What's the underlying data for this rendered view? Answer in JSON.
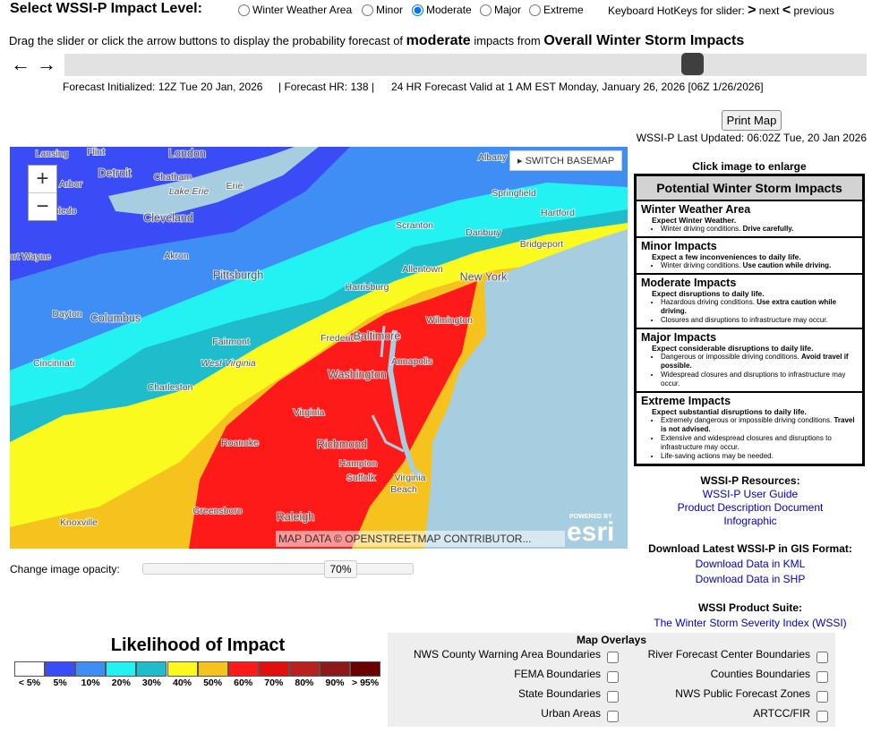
{
  "header": {
    "title": "Select WSSI-P Impact Level:",
    "options": [
      "Winter Weather Area",
      "Minor",
      "Moderate",
      "Major",
      "Extreme"
    ],
    "selected": 2,
    "hotkeys": {
      "label": "Keyboard HotKeys for slider:",
      "next_key": ">",
      "next": "next",
      "prev_key": "<",
      "prev": "previous"
    }
  },
  "instruction": {
    "text1": "Drag the slider or click the arrow buttons to display the probability forecast of",
    "level": "moderate",
    "text2": "impacts from",
    "product": "Overall Winter Storm Impacts"
  },
  "arrows": {
    "back": "←",
    "forward": "→"
  },
  "forecast_info": [
    "Forecast Initialized: 12Z Tue 20 Jan, 2026",
    "| Forecast HR: 138 |",
    "24 HR Forecast Valid at 1 AM EST Monday, January 26, 2026 [06Z 1/26/2026]"
  ],
  "print_button": "Print Map",
  "last_updated": "WSSI-P Last Updated: 06:02Z Tue, 20 Jan 2026",
  "map": {
    "switch_basemap": "SWITCH BASEMAP",
    "zoom_in": "+",
    "zoom_out": "−",
    "attribution": "MAP DATA © OPENSTREETMAP CONTRIBUTOR...",
    "powered_by": "POWERED BY",
    "logo": "esri",
    "labels": [
      "Lansing",
      "Flint",
      "London",
      "Detroit",
      "Chatham",
      "Arbor",
      "Lake Erie",
      "Erie",
      "Toledo",
      "Cleveland",
      "Albany",
      "Springfield",
      "Hartford",
      "Scranton",
      "Danbury",
      "Bridgeport",
      "Akron",
      "Allentown",
      "New York",
      "ort Wayne",
      "Pittsburgh",
      "Harrisburg",
      "Wilmington",
      "Dayton",
      "Columbus",
      "Fairmont",
      "Frederick",
      "Baltimore",
      "Cincinnati",
      "West Virginia",
      "Annapolis",
      "Washington",
      "Charleston",
      "Virginia",
      "Roanoke",
      "Richmond",
      "Hampton",
      "Suffolk",
      "Virginia",
      "Beach",
      "Greensboro",
      "Raleigh",
      "Knoxville"
    ]
  },
  "opacity": {
    "label": "Change image opacity:",
    "value": "70%"
  },
  "legend": {
    "title": "Likelihood of Impact",
    "items": [
      {
        "label": "< 5%",
        "color": "#ffffff"
      },
      {
        "label": "5%",
        "color": "#3a4cf5"
      },
      {
        "label": "10%",
        "color": "#3f8ef5"
      },
      {
        "label": "20%",
        "color": "#22f2f2"
      },
      {
        "label": "30%",
        "color": "#1fbccb"
      },
      {
        "label": "40%",
        "color": "#fafa1e"
      },
      {
        "label": "50%",
        "color": "#f5c21e"
      },
      {
        "label": "60%",
        "color": "#ff1a1a"
      },
      {
        "label": "70%",
        "color": "#e30f0f"
      },
      {
        "label": "80%",
        "color": "#b8211f"
      },
      {
        "label": "90%",
        "color": "#8c1a1a"
      },
      {
        "label": "> 95%",
        "color": "#6a0000"
      }
    ]
  },
  "impacts": {
    "click_note": "Click image to enlarge",
    "title": "Potential Winter Storm Impacts",
    "sections": [
      {
        "heading": "Winter Weather Area",
        "subtitle": "Expect Winter Weather.",
        "bullets": [
          {
            "text": "Winter driving conditions.",
            "strong": "Drive carefully."
          }
        ]
      },
      {
        "heading": "Minor Impacts",
        "subtitle": "Expect a few inconveniences to daily life.",
        "bullets": [
          {
            "text": "Winter driving conditions.",
            "strong": "Use caution while driving."
          }
        ]
      },
      {
        "heading": "Moderate Impacts",
        "subtitle": "Expect disruptions to daily life.",
        "bullets": [
          {
            "text": "Hazardous driving conditions.",
            "strong": "Use extra caution while driving."
          },
          {
            "text": "Closures and disruptions to infrastructure may occur."
          }
        ]
      },
      {
        "heading": "Major Impacts",
        "subtitle": "Expect considerable disruptions to daily life.",
        "bullets": [
          {
            "text": "Dangerous or impossible driving conditions.",
            "strong": "Avoid travel if possible."
          },
          {
            "text": "Widespread closures and disruptions to infrastructure may occur."
          }
        ]
      },
      {
        "heading": "Extreme Impacts",
        "subtitle": "Expect substantial disruptions to daily life.",
        "bullets": [
          {
            "text": "Extremely dangerous or impossible driving conditions.",
            "strong": "Travel is not advised."
          },
          {
            "text": "Extensive and widespread closures and disruptions to infrastructure may occur."
          },
          {
            "text": "Life-saving actions may be needed."
          }
        ]
      }
    ]
  },
  "resources": {
    "title": "WSSI-P Resources:",
    "links": [
      "WSSI-P User Guide",
      "Product Description Document",
      "Infographic"
    ]
  },
  "gis": {
    "title": "Download Latest WSSI-P in GIS Format:",
    "links": [
      "Download Data in KML",
      "Download Data in SHP"
    ]
  },
  "suite": {
    "title": "WSSI Product Suite:",
    "link": "The Winter Storm Severity Index (WSSI)"
  },
  "overlays": {
    "title": "Map Overlays",
    "left": [
      "NWS County Warning Area Boundaries",
      "FEMA Boundaries",
      "State Boundaries",
      "Urban Areas"
    ],
    "right": [
      "River Forecast Center Boundaries",
      "Counties Boundaries",
      "NWS Public Forecast Zones",
      "ARTCC/FIR"
    ]
  }
}
